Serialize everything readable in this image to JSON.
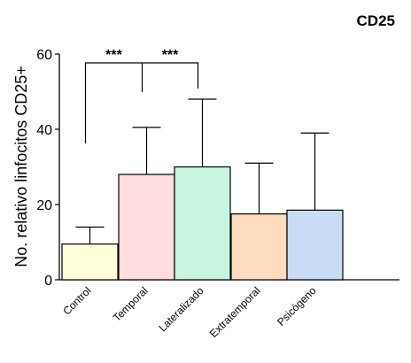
{
  "chart_data": {
    "type": "bar",
    "title": "CD25",
    "ylabel": "No. relativo linfocitos CD25+",
    "xlabel": "",
    "ylim": [
      0,
      60
    ],
    "yticks": [
      0,
      20,
      40,
      60
    ],
    "categories": [
      "Control",
      "Temporal",
      "Lateralizado",
      "Extratemporal",
      "Psicógeno"
    ],
    "values": [
      9.5,
      28,
      30,
      17.5,
      18.5
    ],
    "error_upper": [
      14,
      40.5,
      48,
      31,
      39
    ],
    "colors": [
      "#ffffdc",
      "#ffdde0",
      "#c8f5e0",
      "#ffdcbe",
      "#c8dcf5"
    ],
    "significance": [
      {
        "from": "Control",
        "to": "Temporal",
        "label": "***"
      },
      {
        "from": "Temporal",
        "to": "Lateralizado",
        "label": "***"
      }
    ],
    "grid": false,
    "legend": "none"
  }
}
